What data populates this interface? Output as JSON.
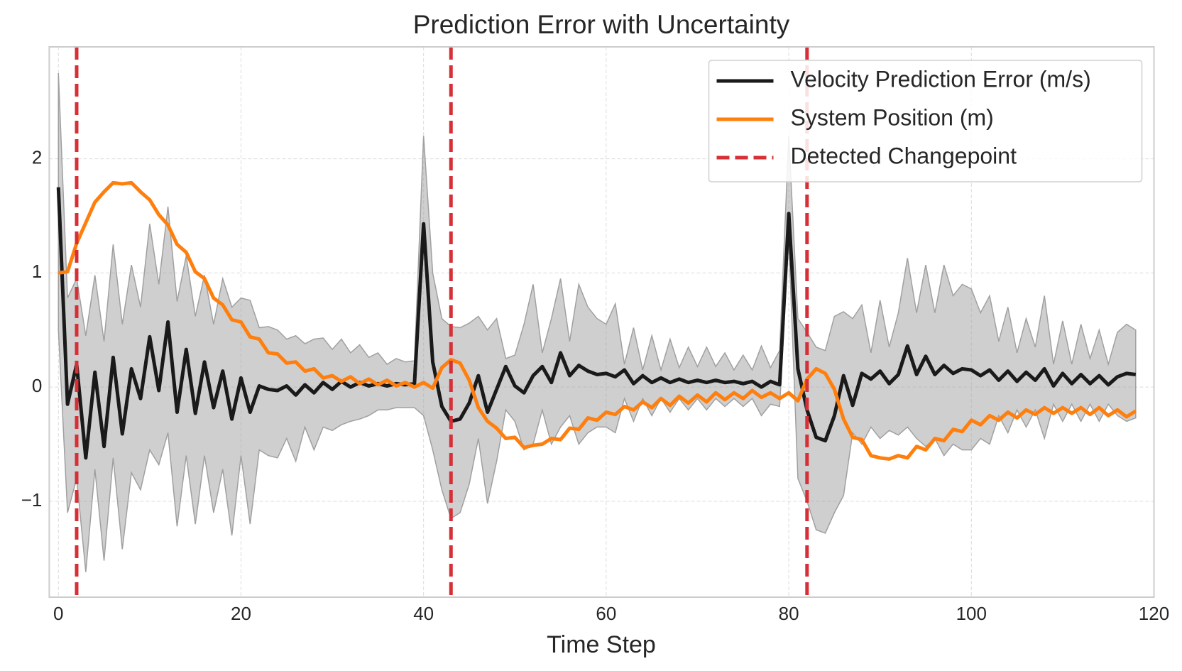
{
  "chart_data": {
    "type": "line",
    "title": "Prediction Error with Uncertainty",
    "xlabel": "Time Step",
    "x": [
      0,
      1,
      2,
      3,
      4,
      5,
      6,
      7,
      8,
      9,
      10,
      11,
      12,
      13,
      14,
      15,
      16,
      17,
      18,
      19,
      20,
      21,
      22,
      23,
      24,
      25,
      26,
      27,
      28,
      29,
      30,
      31,
      32,
      33,
      34,
      35,
      36,
      37,
      38,
      39,
      40,
      41,
      42,
      43,
      44,
      45,
      46,
      47,
      48,
      49,
      50,
      51,
      52,
      53,
      54,
      55,
      56,
      57,
      58,
      59,
      60,
      61,
      62,
      63,
      64,
      65,
      66,
      67,
      68,
      69,
      70,
      71,
      72,
      73,
      74,
      75,
      76,
      77,
      78,
      79,
      80,
      81,
      82,
      83,
      84,
      85,
      86,
      87,
      88,
      89,
      90,
      91,
      92,
      93,
      94,
      95,
      96,
      97,
      98,
      99,
      100,
      101,
      102,
      103,
      104,
      105,
      106,
      107,
      108,
      109,
      110,
      111,
      112,
      113,
      114,
      115,
      116,
      117,
      118
    ],
    "band": {
      "color": "#a0a0a0",
      "upper": [
        2.75,
        0.78,
        0.95,
        0.45,
        0.98,
        0.4,
        1.25,
        0.55,
        1.07,
        0.7,
        1.43,
        0.9,
        1.58,
        0.75,
        1.15,
        0.62,
        0.98,
        0.55,
        0.95,
        0.7,
        0.78,
        0.76,
        0.52,
        0.53,
        0.5,
        0.42,
        0.45,
        0.38,
        0.42,
        0.43,
        0.33,
        0.42,
        0.3,
        0.37,
        0.26,
        0.3,
        0.2,
        0.25,
        0.22,
        0.23,
        2.2,
        1.0,
        0.6,
        0.53,
        0.52,
        0.56,
        0.62,
        0.5,
        0.6,
        0.25,
        0.28,
        0.55,
        0.9,
        0.3,
        0.6,
        0.95,
        0.4,
        0.9,
        0.7,
        0.6,
        0.55,
        0.73,
        0.2,
        0.52,
        0.15,
        0.45,
        0.15,
        0.42,
        0.17,
        0.35,
        0.18,
        0.35,
        0.18,
        0.3,
        0.15,
        0.28,
        0.15,
        0.36,
        0.17,
        0.32,
        2.2,
        0.6,
        0.48,
        0.35,
        0.32,
        0.62,
        0.66,
        0.6,
        0.72,
        0.3,
        0.76,
        0.35,
        0.65,
        1.13,
        0.65,
        1.07,
        0.65,
        1.07,
        0.8,
        0.9,
        0.86,
        0.65,
        0.8,
        0.4,
        0.7,
        0.3,
        0.6,
        0.35,
        0.8,
        0.2,
        0.58,
        0.2,
        0.55,
        0.25,
        0.5,
        0.2,
        0.48,
        0.55,
        0.5
      ],
      "lower": [
        0.5,
        -1.1,
        -0.8,
        -1.62,
        -0.72,
        -1.52,
        -0.62,
        -1.42,
        -0.75,
        -0.9,
        -0.55,
        -0.68,
        -0.4,
        -1.22,
        -0.6,
        -1.2,
        -0.6,
        -1.1,
        -0.72,
        -1.3,
        -0.6,
        -1.2,
        -0.55,
        -0.6,
        -0.62,
        -0.45,
        -0.65,
        -0.35,
        -0.55,
        -0.35,
        -0.38,
        -0.33,
        -0.3,
        -0.28,
        -0.25,
        -0.2,
        -0.2,
        -0.18,
        -0.18,
        -0.18,
        -0.25,
        -0.55,
        -0.9,
        -1.15,
        -1.1,
        -0.85,
        -0.45,
        -1.02,
        -0.65,
        -0.2,
        -0.3,
        -0.55,
        -0.5,
        -0.2,
        -0.5,
        -0.35,
        -0.25,
        -0.5,
        -0.4,
        -0.35,
        -0.35,
        -0.4,
        -0.1,
        -0.3,
        -0.1,
        -0.25,
        -0.1,
        -0.22,
        -0.1,
        -0.2,
        -0.1,
        -0.2,
        -0.1,
        -0.17,
        -0.1,
        -0.17,
        -0.1,
        -0.25,
        -0.15,
        -0.17,
        1.3,
        -0.8,
        -1.0,
        -1.25,
        -1.28,
        -1.1,
        -0.95,
        -0.4,
        -0.5,
        -0.35,
        -0.45,
        -0.38,
        -0.42,
        -0.35,
        -0.45,
        -0.52,
        -0.45,
        -0.6,
        -0.5,
        -0.55,
        -0.55,
        -0.45,
        -0.5,
        -0.25,
        -0.4,
        -0.2,
        -0.35,
        -0.2,
        -0.45,
        -0.15,
        -0.3,
        -0.15,
        -0.3,
        -0.15,
        -0.3,
        -0.15,
        -0.25,
        -0.3,
        -0.27
      ]
    },
    "series": [
      {
        "name": "Velocity Prediction Error (m/s)",
        "color": "#1a1a1a",
        "values": [
          1.75,
          -0.15,
          0.2,
          -0.62,
          0.13,
          -0.52,
          0.26,
          -0.41,
          0.16,
          -0.1,
          0.44,
          -0.03,
          0.57,
          -0.22,
          0.33,
          -0.23,
          0.22,
          -0.18,
          0.14,
          -0.28,
          0.08,
          -0.22,
          0.01,
          -0.02,
          -0.03,
          0.01,
          -0.07,
          0.02,
          -0.05,
          0.04,
          -0.02,
          0.05,
          0.0,
          0.04,
          0.01,
          0.03,
          0.01,
          0.03,
          0.02,
          0.03,
          1.43,
          0.22,
          -0.17,
          -0.3,
          -0.28,
          -0.14,
          0.1,
          -0.22,
          -0.02,
          0.18,
          0.01,
          -0.05,
          0.1,
          0.18,
          0.04,
          0.3,
          0.1,
          0.19,
          0.14,
          0.11,
          0.12,
          0.09,
          0.15,
          0.03,
          0.1,
          0.04,
          0.08,
          0.04,
          0.07,
          0.04,
          0.06,
          0.04,
          0.06,
          0.04,
          0.05,
          0.03,
          0.05,
          0.0,
          0.05,
          0.02,
          1.52,
          0.16,
          -0.2,
          -0.44,
          -0.47,
          -0.25,
          0.1,
          -0.16,
          0.12,
          0.07,
          0.14,
          0.03,
          0.11,
          0.36,
          0.11,
          0.27,
          0.11,
          0.19,
          0.12,
          0.16,
          0.15,
          0.1,
          0.15,
          0.06,
          0.14,
          0.05,
          0.13,
          0.06,
          0.16,
          0.01,
          0.12,
          0.03,
          0.11,
          0.03,
          0.1,
          0.02,
          0.09,
          0.12,
          0.11
        ]
      },
      {
        "name": "System Position (m)",
        "color": "#ff7f0e",
        "values": [
          1.0,
          1.01,
          1.26,
          1.44,
          1.62,
          1.71,
          1.79,
          1.78,
          1.79,
          1.71,
          1.64,
          1.51,
          1.42,
          1.25,
          1.18,
          1.01,
          0.95,
          0.78,
          0.72,
          0.59,
          0.57,
          0.44,
          0.42,
          0.3,
          0.29,
          0.21,
          0.22,
          0.14,
          0.16,
          0.08,
          0.1,
          0.05,
          0.09,
          0.03,
          0.07,
          0.02,
          0.06,
          0.01,
          0.04,
          0.0,
          0.04,
          -0.01,
          0.17,
          0.24,
          0.21,
          0.06,
          -0.18,
          -0.3,
          -0.36,
          -0.45,
          -0.44,
          -0.53,
          -0.51,
          -0.5,
          -0.45,
          -0.46,
          -0.36,
          -0.37,
          -0.27,
          -0.29,
          -0.22,
          -0.24,
          -0.17,
          -0.2,
          -0.13,
          -0.18,
          -0.1,
          -0.16,
          -0.08,
          -0.14,
          -0.07,
          -0.13,
          -0.05,
          -0.11,
          -0.05,
          -0.1,
          -0.03,
          -0.09,
          -0.05,
          -0.1,
          -0.05,
          -0.12,
          0.07,
          0.16,
          0.12,
          -0.02,
          -0.28,
          -0.44,
          -0.46,
          -0.6,
          -0.62,
          -0.63,
          -0.6,
          -0.62,
          -0.52,
          -0.55,
          -0.45,
          -0.47,
          -0.37,
          -0.39,
          -0.29,
          -0.33,
          -0.25,
          -0.29,
          -0.22,
          -0.27,
          -0.2,
          -0.24,
          -0.18,
          -0.23,
          -0.18,
          -0.23,
          -0.18,
          -0.24,
          -0.18,
          -0.25,
          -0.2,
          -0.26,
          -0.21
        ]
      }
    ],
    "changepoints": {
      "name": "Detected Changepoint",
      "color": "#d62f36",
      "x": [
        2,
        43,
        82
      ]
    },
    "xlim": [
      -1,
      120
    ],
    "ylim": [
      -1.84,
      2.98
    ],
    "xticks": [
      0,
      20,
      40,
      60,
      80,
      100,
      120
    ],
    "yticks": [
      {
        "value": -1,
        "label": "−1"
      },
      0,
      1,
      2
    ],
    "grid": true,
    "legend": "upper right"
  }
}
